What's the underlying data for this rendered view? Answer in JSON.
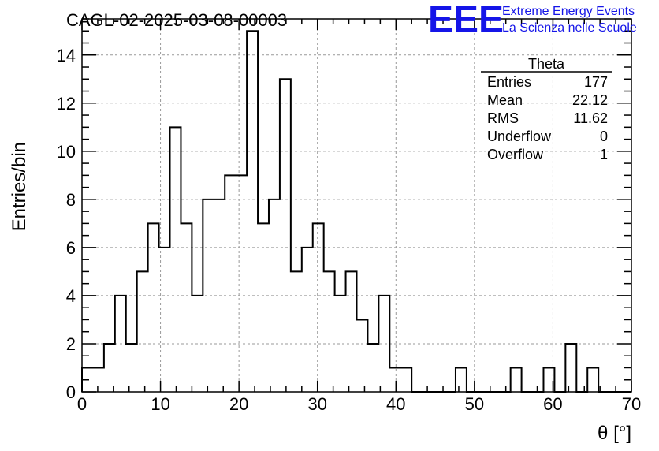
{
  "chart_data": {
    "type": "histogram",
    "title": "CAGL-02-2025-03-08-00003",
    "xlabel": "θ [°]",
    "ylabel": "Entries/bin",
    "xlim": [
      0,
      70
    ],
    "ylim": [
      0,
      15.5
    ],
    "xticks": [
      0,
      10,
      20,
      30,
      40,
      50,
      60,
      70
    ],
    "yticks": [
      0,
      2,
      4,
      6,
      8,
      10,
      12,
      14
    ],
    "grid": true,
    "bin_width": 1.4,
    "bins_start": 0,
    "values": [
      1,
      1,
      2,
      4,
      2,
      5,
      7,
      6,
      11,
      7,
      4,
      8,
      8,
      9,
      9,
      15,
      7,
      8,
      13,
      5,
      6,
      7,
      5,
      4,
      5,
      3,
      2,
      4,
      1,
      1,
      0,
      0,
      0,
      0,
      1,
      0,
      0,
      0,
      0,
      1,
      0,
      0,
      1,
      0,
      2,
      0,
      1,
      0,
      0,
      0
    ],
    "stats_box": {
      "title": "Theta",
      "placement": "top-right",
      "rows": [
        {
          "label": "Entries",
          "value": "177"
        },
        {
          "label": "Mean",
          "value": "22.12"
        },
        {
          "label": "RMS",
          "value": "11.62"
        },
        {
          "label": "Underflow",
          "value": "0"
        },
        {
          "label": "Overflow",
          "value": "1"
        }
      ]
    }
  },
  "branding": {
    "logo": "EEE",
    "line1": "Extreme Energy Events",
    "line2": "La Scienza nelle Scuole",
    "color": "#1515e8"
  }
}
